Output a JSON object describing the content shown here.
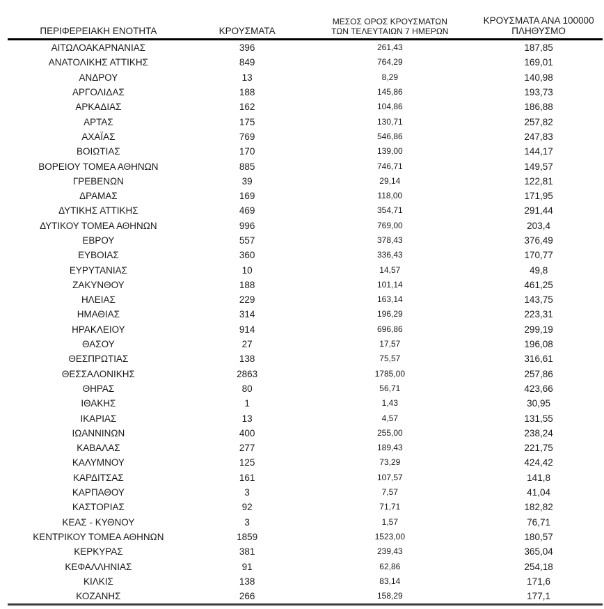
{
  "colors": {
    "background": "#ffffff",
    "text": "#1a1a1a",
    "header_rule": "#000000",
    "bottom_rule": "#3f3f3f"
  },
  "chart_data": {
    "type": "table",
    "title": "",
    "columns": [
      "ΠΕΡΙΦΕΡΕΙΑΚΗ ΕΝΟΤΗΤΑ",
      "ΚΡΟΥΣΜΑΤΑ",
      "ΜΕΣΟΣ ΟΡΟΣ ΚΡΟΥΣΜΑΤΩΝ\nΤΩΝ ΤΕΛΕΥΤΑΙΩΝ 7 ΗΜΕΡΩΝ",
      "ΚΡΟΥΣΜΑΤΑ ΑΝΑ 100000\nΠΛΗΘΥΣΜΟ"
    ],
    "rows": [
      [
        "ΑΙΤΩΛΟΑΚΑΡΝΑΝΙΑΣ",
        "396",
        "261,43",
        "187,85"
      ],
      [
        "ΑΝΑΤΟΛΙΚΗΣ ΑΤΤΙΚΗΣ",
        "849",
        "764,29",
        "169,01"
      ],
      [
        "ΑΝΔΡΟΥ",
        "13",
        "8,29",
        "140,98"
      ],
      [
        "ΑΡΓΟΛΙΔΑΣ",
        "188",
        "145,86",
        "193,73"
      ],
      [
        "ΑΡΚΑΔΙΑΣ",
        "162",
        "104,86",
        "186,88"
      ],
      [
        "ΑΡΤΑΣ",
        "175",
        "130,71",
        "257,82"
      ],
      [
        "ΑΧΑΪΑΣ",
        "769",
        "546,86",
        "247,83"
      ],
      [
        "ΒΟΙΩΤΙΑΣ",
        "170",
        "139,00",
        "144,17"
      ],
      [
        "ΒΟΡΕΙΟΥ ΤΟΜΕΑ ΑΘΗΝΩΝ",
        "885",
        "746,71",
        "149,57"
      ],
      [
        "ΓΡΕΒΕΝΩΝ",
        "39",
        "29,14",
        "122,81"
      ],
      [
        "ΔΡΑΜΑΣ",
        "169",
        "118,00",
        "171,95"
      ],
      [
        "ΔΥΤΙΚΗΣ ΑΤΤΙΚΗΣ",
        "469",
        "354,71",
        "291,44"
      ],
      [
        "ΔΥΤΙΚΟΥ ΤΟΜΕΑ ΑΘΗΝΩΝ",
        "996",
        "769,00",
        "203,4"
      ],
      [
        "ΕΒΡΟΥ",
        "557",
        "378,43",
        "376,49"
      ],
      [
        "ΕΥΒΟΙΑΣ",
        "360",
        "336,43",
        "170,77"
      ],
      [
        "ΕΥΡΥΤΑΝΙΑΣ",
        "10",
        "14,57",
        "49,8"
      ],
      [
        "ΖΑΚΥΝΘΟΥ",
        "188",
        "101,14",
        "461,25"
      ],
      [
        "ΗΛΕΙΑΣ",
        "229",
        "163,14",
        "143,75"
      ],
      [
        "ΗΜΑΘΙΑΣ",
        "314",
        "196,29",
        "223,31"
      ],
      [
        "ΗΡΑΚΛΕΙΟΥ",
        "914",
        "696,86",
        "299,19"
      ],
      [
        "ΘΑΣΟΥ",
        "27",
        "17,57",
        "196,08"
      ],
      [
        "ΘΕΣΠΡΩΤΙΑΣ",
        "138",
        "75,57",
        "316,61"
      ],
      [
        "ΘΕΣΣΑΛΟΝΙΚΗΣ",
        "2863",
        "1785,00",
        "257,86"
      ],
      [
        "ΘΗΡΑΣ",
        "80",
        "56,71",
        "423,66"
      ],
      [
        "ΙΘΑΚΗΣ",
        "1",
        "1,43",
        "30,95"
      ],
      [
        "ΙΚΑΡΙΑΣ",
        "13",
        "4,57",
        "131,55"
      ],
      [
        "ΙΩΑΝΝΙΝΩΝ",
        "400",
        "255,00",
        "238,24"
      ],
      [
        "ΚΑΒΑΛΑΣ",
        "277",
        "189,43",
        "221,75"
      ],
      [
        "ΚΑΛΥΜΝΟΥ",
        "125",
        "73,29",
        "424,42"
      ],
      [
        "ΚΑΡΔΙΤΣΑΣ",
        "161",
        "107,57",
        "141,8"
      ],
      [
        "ΚΑΡΠΑΘΟΥ",
        "3",
        "7,57",
        "41,04"
      ],
      [
        "ΚΑΣΤΟΡΙΑΣ",
        "92",
        "71,71",
        "182,82"
      ],
      [
        "ΚΕΑΣ - ΚΥΘΝΟΥ",
        "3",
        "1,57",
        "76,71"
      ],
      [
        "ΚΕΝΤΡΙΚΟΥ ΤΟΜΕΑ ΑΘΗΝΩΝ",
        "1859",
        "1523,00",
        "180,57"
      ],
      [
        "ΚΕΡΚΥΡΑΣ",
        "381",
        "239,43",
        "365,04"
      ],
      [
        "ΚΕΦΑΛΛΗΝΙΑΣ",
        "91",
        "62,86",
        "254,18"
      ],
      [
        "ΚΙΛΚΙΣ",
        "138",
        "83,14",
        "171,6"
      ],
      [
        "ΚΟΖΑΝΗΣ",
        "266",
        "158,29",
        "177,1"
      ]
    ]
  }
}
